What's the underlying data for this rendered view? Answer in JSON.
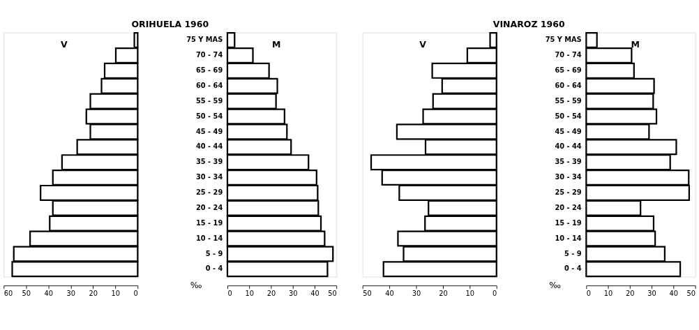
{
  "chart_data": [
    {
      "type": "bar",
      "orientation": "horizontal",
      "title": "ORIHUELA 1960",
      "subtitle": "V",
      "tick_labels": "x",
      "color": "#ffffff",
      "values": [
        1.5,
        9.8,
        14.8,
        16.2,
        21.2,
        23,
        21.2,
        27.1,
        33.9,
        38,
        43.5,
        38,
        39.4,
        48.2,
        55.5,
        56.2
      ],
      "xlim": [
        60,
        0
      ],
      "xticks": [
        60,
        50,
        40,
        30,
        20,
        10,
        0
      ]
    },
    {
      "type": "bar",
      "orientation": "horizontal",
      "subtitle": "M",
      "xlabel": "‰",
      "categories": [
        "75 Y MAS",
        "70 - 74",
        "65 - 69",
        "60 - 64",
        "55 - 59",
        "50 - 54",
        "45 - 49",
        "40 - 44",
        "35 - 39",
        "30 - 34",
        "25 - 29",
        "20 - 24",
        "15 - 19",
        "10 - 14",
        "5 - 9",
        "0 - 4"
      ],
      "color": "#ffffff",
      "values": [
        3.3,
        11.7,
        19.1,
        22.9,
        22.3,
        26.2,
        27.3,
        29.2,
        37.2,
        40.9,
        41.4,
        41.7,
        42.9,
        44.6,
        48.4,
        45.9
      ],
      "xlim": [
        0,
        50
      ],
      "xticks": [
        0,
        10,
        20,
        30,
        40,
        50
      ]
    },
    {
      "type": "bar",
      "orientation": "horizontal",
      "title": "VINAROZ 1960",
      "subtitle": "V",
      "tick_labels": "x",
      "color": "#ffffff",
      "values": [
        2.4,
        10.9,
        24,
        20.3,
        23.7,
        27.4,
        37.2,
        26.5,
        46.8,
        42.7,
        36.3,
        25.4,
        26.7,
        36.8,
        34.7,
        42.2
      ],
      "xlim": [
        50,
        0
      ],
      "xticks": [
        50,
        40,
        30,
        20,
        10,
        0
      ]
    },
    {
      "type": "bar",
      "orientation": "horizontal",
      "subtitle": "M",
      "xlabel": "‰",
      "categories": [
        "75 Y MAS",
        "70 - 74",
        "65 - 69",
        "60 - 64",
        "55 - 59",
        "50 - 54",
        "45 - 49",
        "40 - 44",
        "35 - 39",
        "30 - 34",
        "25 - 29",
        "20 - 24",
        "15 - 19",
        "10 - 14",
        "5 - 9",
        "0 - 4"
      ],
      "color": "#ffffff",
      "values": [
        4.9,
        20.8,
        21.9,
        31.1,
        30.7,
        32.2,
        28.8,
        41.3,
        38.5,
        47,
        47.2,
        24.9,
        30.9,
        31.6,
        36,
        43.1
      ],
      "xlim": [
        0,
        50
      ],
      "xticks": [
        0,
        10,
        20,
        30,
        40,
        50
      ]
    }
  ]
}
